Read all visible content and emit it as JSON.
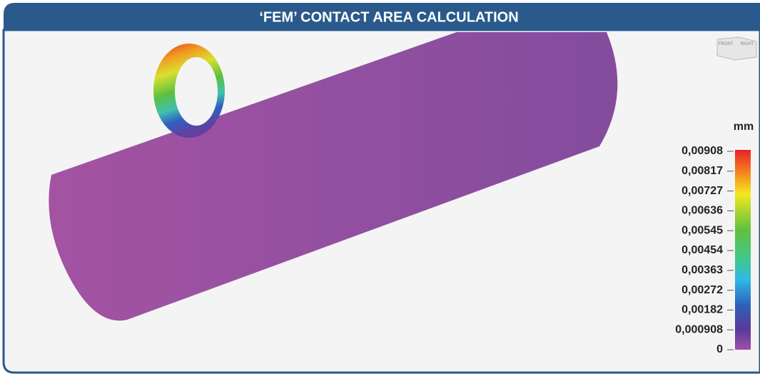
{
  "header": {
    "title": "‘FEM’ CONTACT AREA CALCULATION"
  },
  "viewcube": {
    "faces": [
      "FRONT",
      "RIGHT"
    ]
  },
  "legend": {
    "unit": "mm",
    "ticks": [
      "0,00908",
      "0,00817",
      "0,00727",
      "0,00636",
      "0,00545",
      "0,00454",
      "0,00363",
      "0,00272",
      "0,00182",
      "0,000908",
      "0"
    ]
  }
}
